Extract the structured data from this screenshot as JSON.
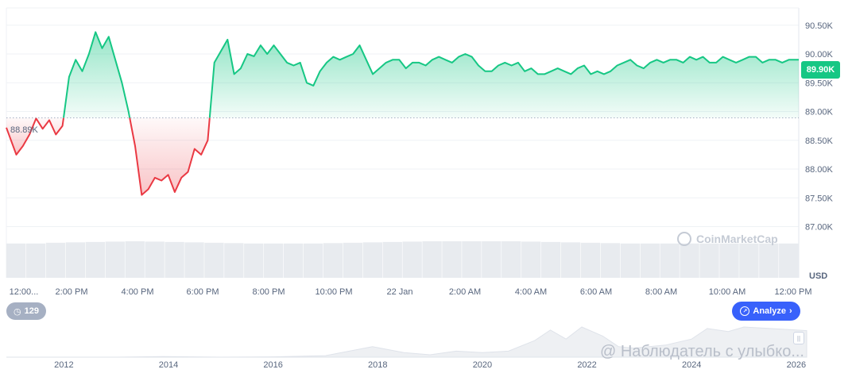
{
  "chart_data": {
    "type": "area",
    "currency": "USD",
    "current_price_label": "89.90K",
    "baseline_label": "88.89K",
    "baseline_value": 88890,
    "y_ticks": [
      "90.50K",
      "90.00K",
      "89.50K",
      "89.00K",
      "88.50K",
      "88.00K",
      "87.50K",
      "87.00K"
    ],
    "ylim": [
      86800,
      90800
    ],
    "x_ticks": [
      "12:00...",
      "2:00 PM",
      "4:00 PM",
      "6:00 PM",
      "8:00 PM",
      "10:00 PM",
      "22 Jan",
      "2:00 AM",
      "4:00 AM",
      "6:00 AM",
      "8:00 AM",
      "10:00 AM",
      "12:00 PM"
    ],
    "x_hours": [
      0,
      24
    ],
    "series": [
      {
        "x": [
          0,
          0.3,
          0.5,
          0.7,
          0.9,
          1.1,
          1.3,
          1.5,
          1.7,
          1.9,
          2.1,
          2.3,
          2.5,
          2.7,
          2.9,
          3.1,
          3.3,
          3.5,
          3.7,
          3.9,
          4.1,
          4.3,
          4.5,
          4.7,
          4.9,
          5.1,
          5.3,
          5.5,
          5.7,
          5.9,
          6.1,
          6.3,
          6.5,
          6.7,
          6.9,
          7.1,
          7.3,
          7.5,
          7.7,
          7.9,
          8.1,
          8.3,
          8.5,
          8.7,
          8.9,
          9.1,
          9.3,
          9.5,
          9.7,
          9.9,
          10.1,
          10.3,
          10.5,
          10.7,
          10.9,
          11.1,
          11.3,
          11.5,
          11.7,
          11.9,
          12.1,
          12.3,
          12.5,
          12.7,
          12.9,
          13.1,
          13.3,
          13.5,
          13.7,
          13.9,
          14.1,
          14.3,
          14.5,
          14.7,
          14.9,
          15.1,
          15.3,
          15.5,
          15.7,
          15.9,
          16.1,
          16.3,
          16.5,
          16.7,
          16.9,
          17.1,
          17.3,
          17.5,
          17.7,
          17.9,
          18.1,
          18.3,
          18.5,
          18.7,
          18.9,
          19.1,
          19.3,
          19.5,
          19.7,
          19.9,
          20.1,
          20.3,
          20.5,
          20.7,
          20.9,
          21.1,
          21.3,
          21.5,
          21.7,
          21.9,
          22.1,
          22.3,
          22.5,
          22.7,
          22.9,
          23.1,
          23.3,
          23.5,
          23.7,
          24
        ],
        "values": [
          88720,
          88250,
          88400,
          88600,
          88880,
          88700,
          88850,
          88600,
          88750,
          89600,
          89900,
          89700,
          90000,
          90380,
          90100,
          90300,
          89900,
          89500,
          89000,
          88400,
          87550,
          87650,
          87850,
          87800,
          87900,
          87600,
          87850,
          87950,
          88350,
          88250,
          88500,
          89850,
          90050,
          90250,
          89650,
          89750,
          90000,
          89960,
          90150,
          90000,
          90150,
          90000,
          89850,
          89800,
          89850,
          89500,
          89450,
          89700,
          89850,
          89950,
          89900,
          89950,
          90000,
          90150,
          89900,
          89650,
          89750,
          89850,
          89900,
          89900,
          89750,
          89850,
          89850,
          89800,
          89900,
          89950,
          89900,
          89850,
          89950,
          90000,
          89950,
          89800,
          89700,
          89700,
          89800,
          89850,
          89800,
          89850,
          89700,
          89750,
          89650,
          89650,
          89700,
          89750,
          89700,
          89650,
          89750,
          89800,
          89650,
          89700,
          89650,
          89700,
          89800,
          89850,
          89900,
          89800,
          89750,
          89850,
          89900,
          89850,
          89900,
          89900,
          89850,
          89950,
          89900,
          89950,
          89850,
          89850,
          89950,
          89900,
          89850,
          89900,
          89950,
          89950,
          89850,
          89900,
          89900,
          89850,
          89900,
          89900
        ]
      }
    ],
    "volume": {
      "values": [
        0.9,
        0.9,
        0.92,
        0.93,
        0.94,
        0.95,
        0.96,
        0.95,
        0.94,
        0.93,
        0.92,
        0.91,
        0.9,
        0.9,
        0.9,
        0.9,
        0.91,
        0.92,
        0.93,
        0.94,
        0.95,
        0.96,
        0.96,
        0.96,
        0.96,
        0.96,
        0.95,
        0.94,
        0.93,
        0.92,
        0.91,
        0.9,
        0.9,
        0.9,
        0.9,
        0.9,
        0.9,
        0.9,
        0.9,
        0.9
      ]
    },
    "navigator": {
      "x_ticks": [
        "2012",
        "2014",
        "2016",
        "2018",
        "2020",
        "2022",
        "2024",
        "2026"
      ],
      "years": [
        2010.9,
        2026.2
      ],
      "points": [
        [
          2010.9,
          0.0
        ],
        [
          2013.0,
          0.0
        ],
        [
          2013.9,
          0.02
        ],
        [
          2015.0,
          0.0
        ],
        [
          2016.0,
          0.01
        ],
        [
          2017.0,
          0.05
        ],
        [
          2017.9,
          0.35
        ],
        [
          2018.5,
          0.15
        ],
        [
          2019.0,
          0.08
        ],
        [
          2019.5,
          0.2
        ],
        [
          2020.0,
          0.15
        ],
        [
          2020.5,
          0.2
        ],
        [
          2021.0,
          0.55
        ],
        [
          2021.3,
          0.9
        ],
        [
          2021.6,
          0.6
        ],
        [
          2021.9,
          1.0
        ],
        [
          2022.3,
          0.7
        ],
        [
          2022.6,
          0.35
        ],
        [
          2022.9,
          0.3
        ],
        [
          2023.5,
          0.4
        ],
        [
          2024.0,
          0.6
        ],
        [
          2024.3,
          0.95
        ],
        [
          2024.7,
          0.85
        ],
        [
          2025.0,
          1.0
        ],
        [
          2025.5,
          0.95
        ],
        [
          2026.0,
          0.9
        ],
        [
          2026.2,
          0.88
        ]
      ]
    },
    "grid": true
  },
  "controls": {
    "analyze_label": "Analyze",
    "analyze_icon": "analyze-icon",
    "badge_count": "129",
    "badge_icon": "history-icon",
    "handle_icon": "drag-handle-icon"
  },
  "branding": {
    "watermark": "CoinMarketCap"
  },
  "overlay": {
    "text": "@ Наблюдатель с улыбко..."
  },
  "colors": {
    "up": "#16c784",
    "down": "#ea3943",
    "grid": "#eff2f5",
    "accent": "#3861fb"
  }
}
